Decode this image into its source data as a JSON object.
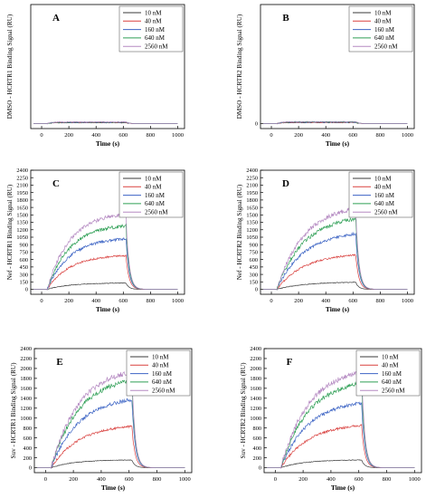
{
  "colors": {
    "10 nM": "#3a3a3a",
    "40 nM": "#d9413f",
    "160 nM": "#3b63c4",
    "640 nM": "#2e9f55",
    "2560 nM": "#b58ac2",
    "axis": "#000000"
  },
  "chart_data": [
    {
      "type": "line",
      "panel": "A",
      "ylabel": "DMSO - HCRTR1 Binding Signal (RU)",
      "xlabel": "Time (s)",
      "xlim": [
        -80,
        1050
      ],
      "ylim": [
        -100,
        2400
      ],
      "xticks": [
        0,
        200,
        400,
        600,
        800,
        1000
      ],
      "yticks": [],
      "legend_position": "top-right",
      "series": [
        {
          "name": "10 nM",
          "plateau": 18,
          "rise": 0.03
        },
        {
          "name": "40 nM",
          "plateau": 22,
          "rise": 0.03
        },
        {
          "name": "160 nM",
          "plateau": 26,
          "rise": 0.03
        },
        {
          "name": "640 nM",
          "plateau": 30,
          "rise": 0.03
        },
        {
          "name": "2560 nM",
          "plateau": 35,
          "rise": 0.03
        }
      ]
    },
    {
      "type": "line",
      "panel": "B",
      "ylabel": "DMSO - HCRTR2 Binding Signal (RU)",
      "xlabel": "Time (s)",
      "xlim": [
        -80,
        1050
      ],
      "ylim": [
        -100,
        2400
      ],
      "xticks": [
        0,
        200,
        400,
        600,
        800,
        1000
      ],
      "yticks": [
        0
      ],
      "legend_position": "top-right",
      "series": [
        {
          "name": "10 nM",
          "plateau": 20,
          "rise": 0.03
        },
        {
          "name": "40 nM",
          "plateau": 25,
          "rise": 0.03
        },
        {
          "name": "160 nM",
          "plateau": 30,
          "rise": 0.03
        },
        {
          "name": "640 nM",
          "plateau": 35,
          "rise": 0.03
        },
        {
          "name": "2560 nM",
          "plateau": 40,
          "rise": 0.03
        }
      ]
    },
    {
      "type": "line",
      "panel": "C",
      "ylabel": "Nef - HCRTR1 Binding Signal (RU)",
      "xlabel": "Time (s)",
      "xlim": [
        -80,
        1050
      ],
      "ylim": [
        -100,
        2400
      ],
      "xticks": [
        0,
        200,
        400,
        600,
        800,
        1000
      ],
      "yticks": [
        0,
        150,
        300,
        450,
        600,
        750,
        900,
        1050,
        1200,
        1350,
        1500,
        1650,
        1800,
        1950,
        2100,
        2250,
        2400
      ],
      "legend_position": "top-right",
      "series": [
        {
          "name": "10 nM",
          "plateau": 130,
          "rise": 0.006
        },
        {
          "name": "40 nM",
          "plateau": 700,
          "rise": 0.006
        },
        {
          "name": "160 nM",
          "plateau": 1050,
          "rise": 0.006
        },
        {
          "name": "640 nM",
          "plateau": 1320,
          "rise": 0.006
        },
        {
          "name": "2560 nM",
          "plateau": 1560,
          "rise": 0.006
        }
      ]
    },
    {
      "type": "line",
      "panel": "D",
      "ylabel": "Nef - HCRTR2 Binding Signal (RU)",
      "xlabel": "Time (s)",
      "xlim": [
        -80,
        1050
      ],
      "ylim": [
        -100,
        2400
      ],
      "xticks": [
        0,
        200,
        400,
        600,
        800,
        1000
      ],
      "yticks": [
        0,
        150,
        300,
        450,
        600,
        750,
        900,
        1050,
        1200,
        1350,
        1500,
        1650,
        1800,
        1950,
        2100,
        2250,
        2400
      ],
      "legend_position": "top-right",
      "series": [
        {
          "name": "10 nM",
          "plateau": 150,
          "rise": 0.005
        },
        {
          "name": "40 nM",
          "plateau": 730,
          "rise": 0.005
        },
        {
          "name": "160 nM",
          "plateau": 1180,
          "rise": 0.005
        },
        {
          "name": "640 nM",
          "plateau": 1500,
          "rise": 0.005
        },
        {
          "name": "2560 nM",
          "plateau": 1720,
          "rise": 0.005
        }
      ]
    },
    {
      "type": "line",
      "panel": "E",
      "ylabel": "Suv - HCRTR1 Binding Signal (RU)",
      "xlabel": "Time (s)",
      "xlim": [
        -80,
        1050
      ],
      "ylim": [
        -100,
        2400
      ],
      "xticks": [
        0,
        200,
        400,
        600,
        800,
        1000
      ],
      "yticks": [
        0,
        200,
        400,
        600,
        800,
        1000,
        1200,
        1400,
        1600,
        1800,
        2000,
        2200,
        2400
      ],
      "legend_position": "top-right",
      "series": [
        {
          "name": "10 nM",
          "plateau": 160,
          "rise": 0.006
        },
        {
          "name": "40 nM",
          "plateau": 880,
          "rise": 0.005
        },
        {
          "name": "160 nM",
          "plateau": 1450,
          "rise": 0.005
        },
        {
          "name": "640 nM",
          "plateau": 1860,
          "rise": 0.005
        },
        {
          "name": "2560 nM",
          "plateau": 2040,
          "rise": 0.005
        }
      ]
    },
    {
      "type": "line",
      "panel": "F",
      "ylabel": "Suv - HCRTR2 Binding Signal (RU)",
      "xlabel": "Time (s)",
      "xlim": [
        -80,
        1050
      ],
      "ylim": [
        -100,
        2400
      ],
      "xticks": [
        0,
        200,
        400,
        600,
        800,
        1000
      ],
      "yticks": [
        0,
        200,
        400,
        600,
        800,
        1000,
        1200,
        1400,
        1600,
        1800,
        2000,
        2200,
        2400
      ],
      "legend_position": "top-right",
      "series": [
        {
          "name": "10 nM",
          "plateau": 160,
          "rise": 0.006
        },
        {
          "name": "40 nM",
          "plateau": 900,
          "rise": 0.005
        },
        {
          "name": "160 nM",
          "plateau": 1380,
          "rise": 0.005
        },
        {
          "name": "640 nM",
          "plateau": 1800,
          "rise": 0.005
        },
        {
          "name": "2560 nM",
          "plateau": 2030,
          "rise": 0.005
        }
      ]
    }
  ]
}
